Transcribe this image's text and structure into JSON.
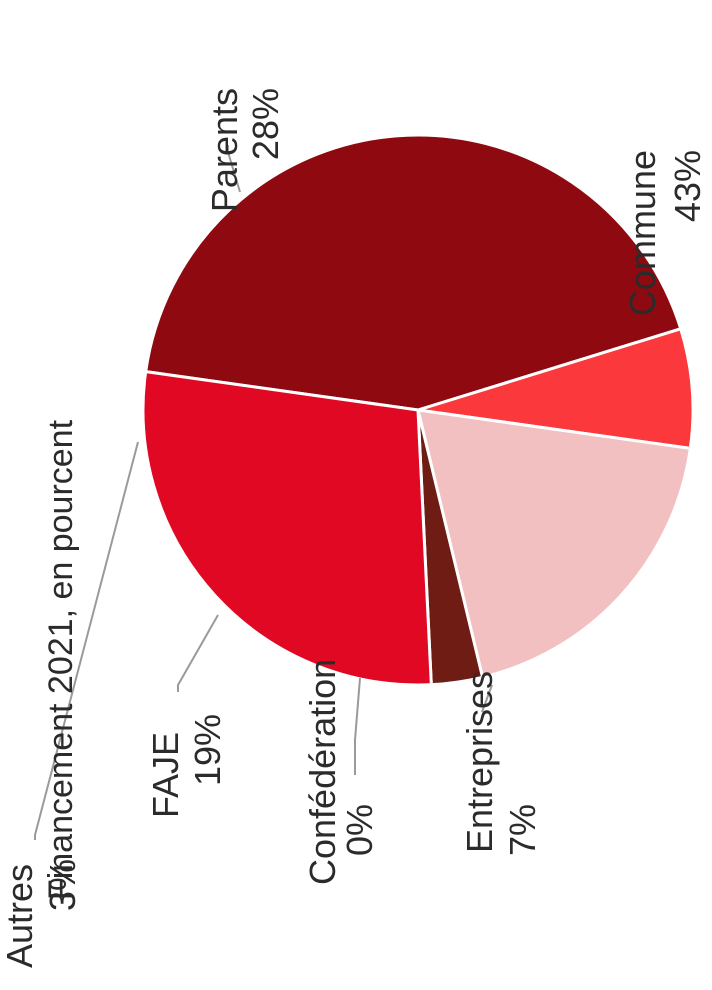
{
  "chart_data": {
    "type": "pie",
    "title": "Financement 2021, en pourcent",
    "unit": "%",
    "slices": [
      {
        "label": "Commune",
        "value": 43,
        "value_text": "43%",
        "color": "#8e0a10"
      },
      {
        "label": "Entreprises",
        "value": 7,
        "value_text": "7%",
        "color": "#fb383b"
      },
      {
        "label": "Confédération",
        "value": 0,
        "value_text": "0%",
        "color": "#f7b0a8"
      },
      {
        "label": "FAJE",
        "value": 19,
        "value_text": "19%",
        "color": "#f2c0c0"
      },
      {
        "label": "Autres",
        "value": 3,
        "value_text": "3%",
        "color": "#6e1c14"
      },
      {
        "label": "Parents",
        "value": 28,
        "value_text": "28%",
        "color": "#e00822"
      }
    ]
  }
}
